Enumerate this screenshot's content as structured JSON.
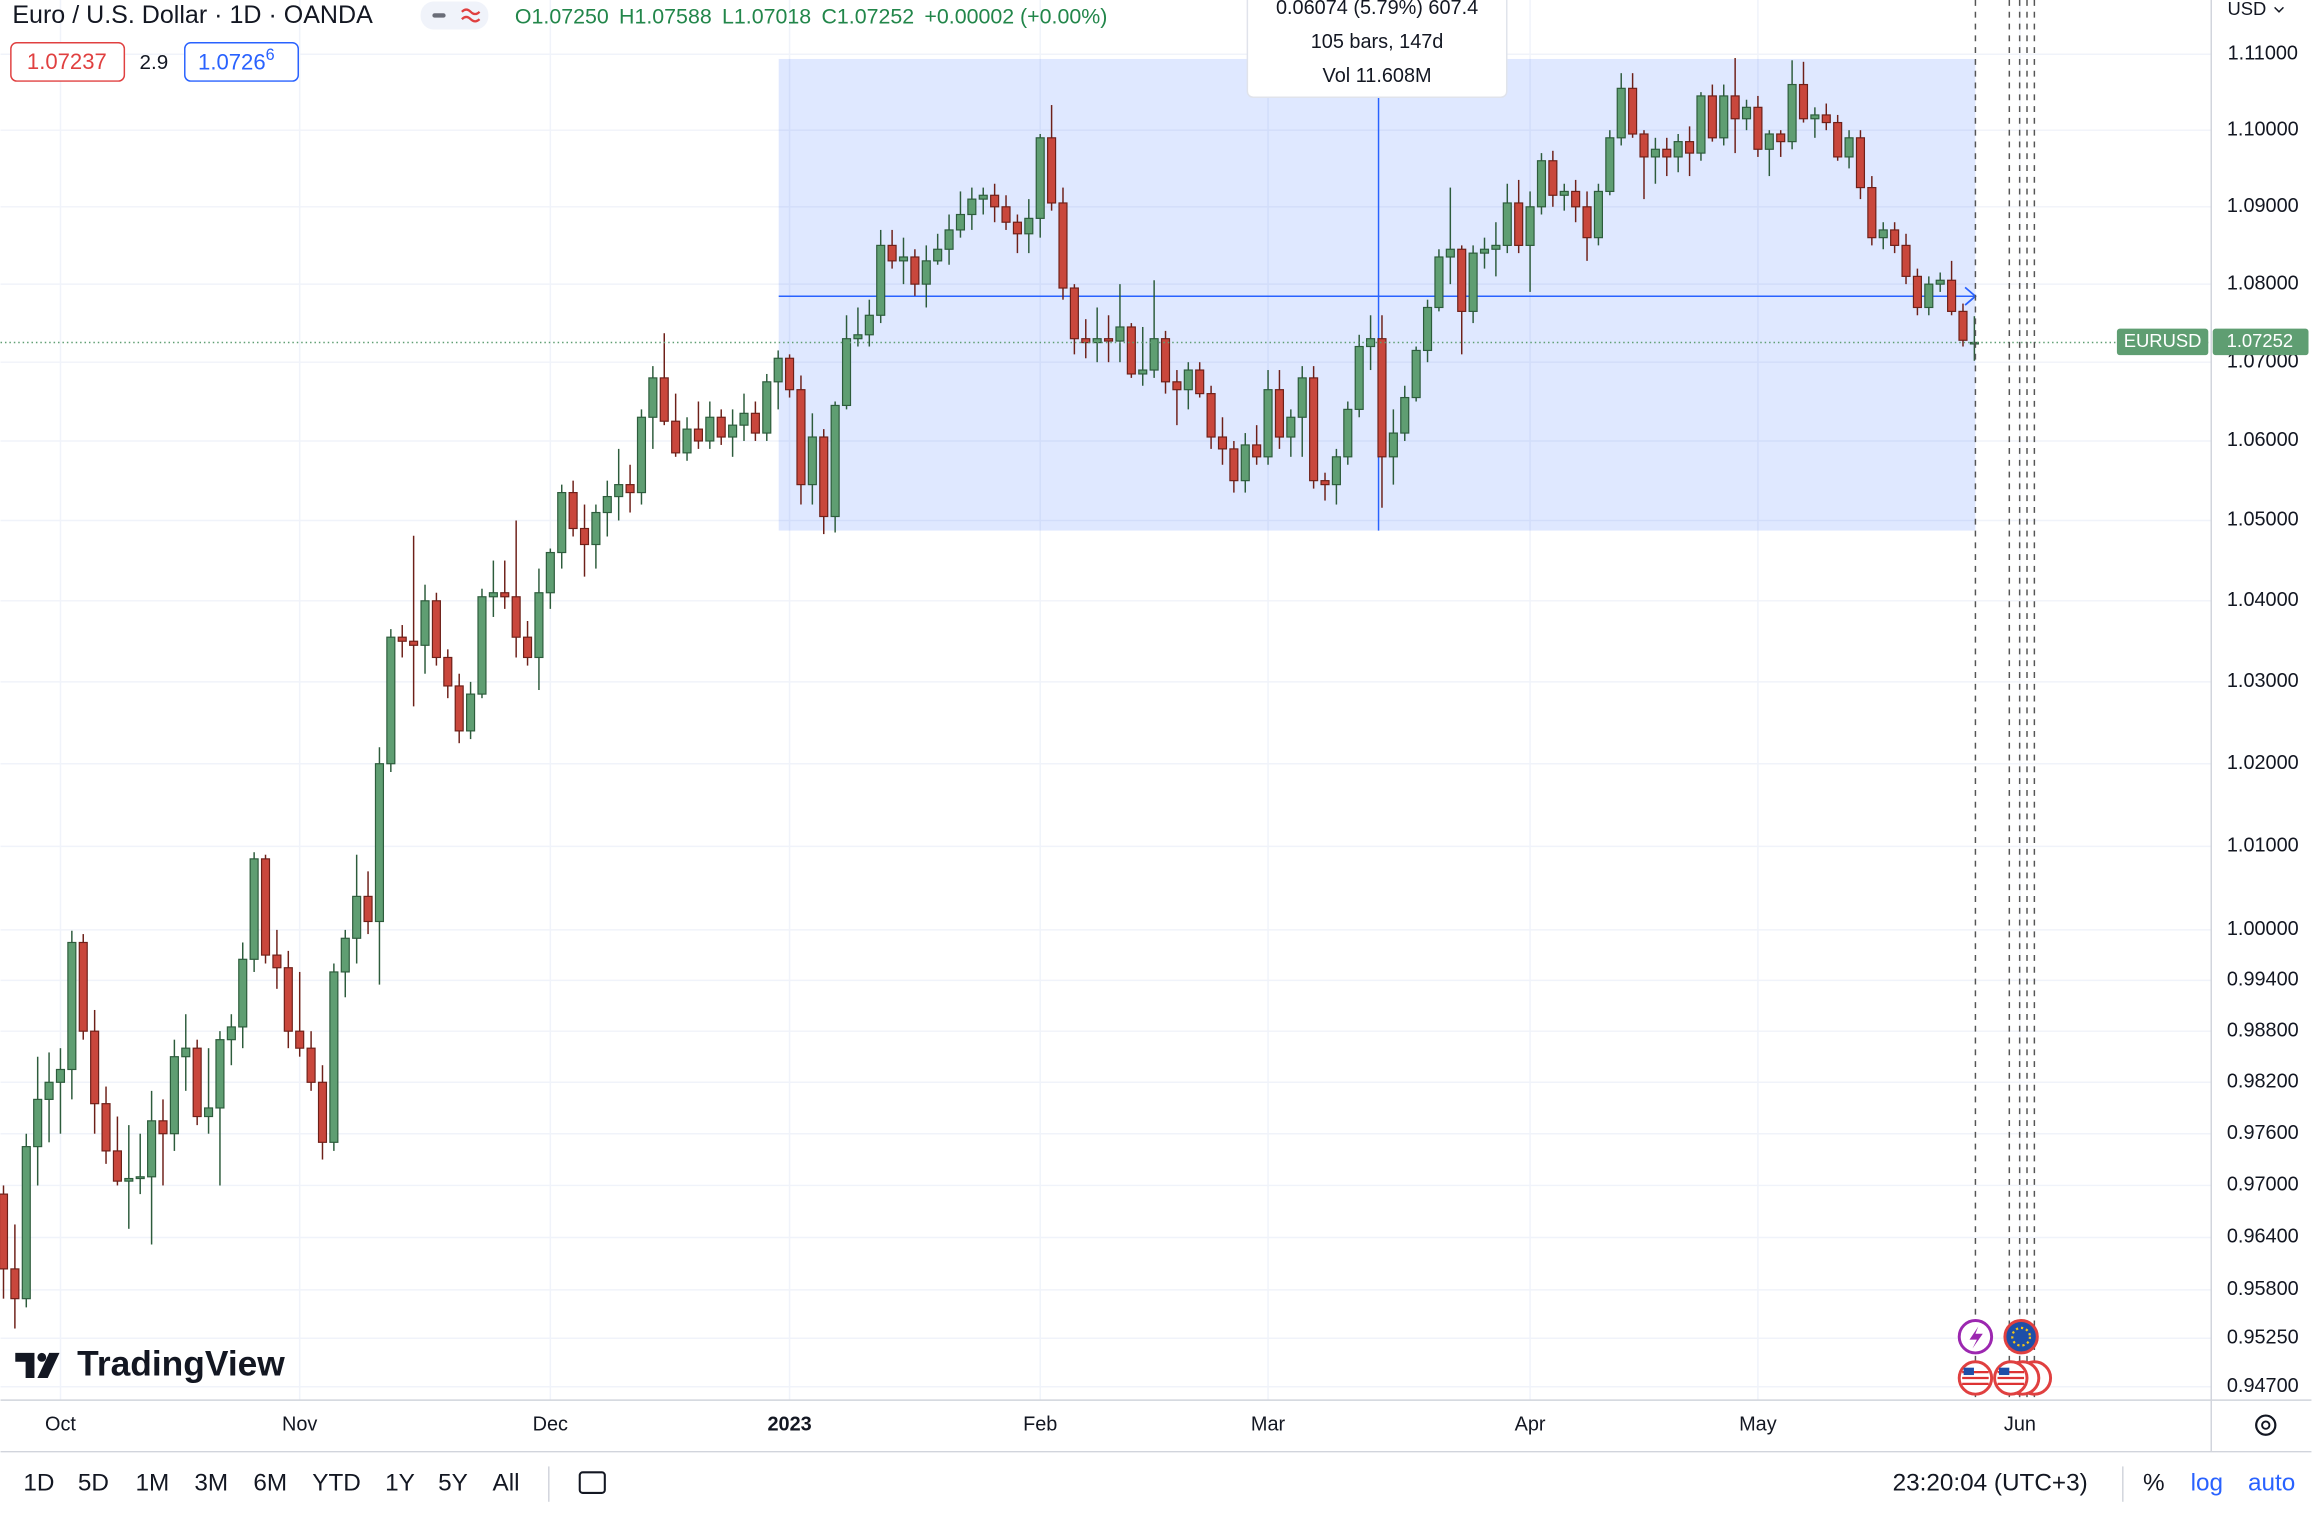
{
  "header": {
    "title": "Euro / U.S. Dollar · 1D · OANDA",
    "ohlc": [
      {
        "letter": "O",
        "value": "1.07250"
      },
      {
        "letter": "H",
        "value": "1.07588"
      },
      {
        "letter": "L",
        "value": "1.07018"
      },
      {
        "letter": "C",
        "value": "1.07252"
      }
    ],
    "change": "+0.00002 (+0.00%)",
    "bid": "1.07237",
    "spread": "2.9",
    "ask": "1.0726",
    "ask_fraction": "6",
    "currency": "USD"
  },
  "measure_tooltip": [
    "0.06074 (5.79%) 607.4",
    "105 bars, 147d",
    "Vol 11.608M"
  ],
  "price_tag": {
    "symbol": "EURUSD",
    "price": "1.07252"
  },
  "logo": "TradingView",
  "toolbar": {
    "ranges": [
      "1D",
      "5D",
      "1M",
      "3M",
      "6M",
      "YTD",
      "1Y",
      "5Y",
      "All"
    ],
    "time": "23:20:04 (UTC+3)",
    "options": [
      "%",
      "log",
      "auto"
    ]
  },
  "chart_data": {
    "type": "candlestick",
    "log_scale": true,
    "grid": true,
    "up_color": "#5f9e72",
    "down_color": "#c9473c",
    "ylim": [
      0.9455,
      1.1172
    ],
    "yticks": [
      {
        "value": 1.11,
        "label": "1.11000"
      },
      {
        "value": 1.1,
        "label": "1.10000"
      },
      {
        "value": 1.09,
        "label": "1.09000"
      },
      {
        "value": 1.08,
        "label": "1.08000"
      },
      {
        "value": 1.07,
        "label": "1.07000"
      },
      {
        "value": 1.06,
        "label": "1.06000"
      },
      {
        "value": 1.05,
        "label": "1.05000"
      },
      {
        "value": 1.04,
        "label": "1.04000"
      },
      {
        "value": 1.03,
        "label": "1.03000"
      },
      {
        "value": 1.02,
        "label": "1.02000"
      },
      {
        "value": 1.01,
        "label": "1.01000"
      },
      {
        "value": 1.0,
        "label": "1.00000"
      },
      {
        "value": 0.994,
        "label": "0.99400"
      },
      {
        "value": 0.988,
        "label": "0.98800"
      },
      {
        "value": 0.982,
        "label": "0.98200"
      },
      {
        "value": 0.976,
        "label": "0.97600"
      },
      {
        "value": 0.97,
        "label": "0.97000"
      },
      {
        "value": 0.964,
        "label": "0.96400"
      },
      {
        "value": 0.958,
        "label": "0.95800"
      },
      {
        "value": 0.9525,
        "label": "0.95250"
      },
      {
        "value": 0.947,
        "label": "0.94700"
      }
    ],
    "categories": [
      null,
      null,
      null,
      null,
      null,
      "Oct",
      null,
      null,
      null,
      null,
      null,
      null,
      null,
      null,
      null,
      null,
      null,
      null,
      null,
      null,
      null,
      null,
      null,
      null,
      null,
      null,
      "Nov",
      null,
      null,
      null,
      null,
      null,
      null,
      null,
      null,
      null,
      null,
      null,
      null,
      null,
      null,
      null,
      null,
      null,
      null,
      null,
      null,
      null,
      "Dec",
      null,
      null,
      null,
      null,
      null,
      null,
      null,
      null,
      null,
      null,
      null,
      null,
      null,
      null,
      null,
      null,
      null,
      null,
      null,
      null,
      "2023",
      null,
      null,
      null,
      null,
      null,
      null,
      null,
      null,
      null,
      null,
      null,
      null,
      null,
      null,
      null,
      null,
      null,
      null,
      null,
      null,
      null,
      "Feb",
      null,
      null,
      null,
      null,
      null,
      null,
      null,
      null,
      null,
      null,
      null,
      null,
      null,
      null,
      null,
      null,
      null,
      null,
      null,
      "Mar",
      null,
      null,
      null,
      null,
      null,
      null,
      null,
      null,
      null,
      null,
      null,
      null,
      null,
      null,
      null,
      null,
      null,
      null,
      null,
      null,
      null,
      null,
      "Apr",
      null,
      null,
      null,
      null,
      null,
      null,
      null,
      null,
      null,
      null,
      null,
      null,
      null,
      null,
      null,
      null,
      null,
      null,
      null,
      "May",
      null,
      null,
      null,
      null,
      null,
      null,
      null,
      null,
      null,
      null,
      null,
      null,
      null,
      null,
      null,
      null,
      null,
      null,
      null,
      null,
      null,
      null,
      "Jun"
    ],
    "candles": [
      [
        0.969,
        0.97,
        0.957,
        0.9604
      ],
      [
        0.9604,
        0.9655,
        0.9536,
        0.957
      ],
      [
        0.957,
        0.976,
        0.956,
        0.9745
      ],
      [
        0.9745,
        0.985,
        0.97,
        0.98
      ],
      [
        0.98,
        0.9855,
        0.975,
        0.982
      ],
      [
        0.982,
        0.986,
        0.976,
        0.9835
      ],
      [
        0.9835,
        0.9999,
        0.98,
        0.9985
      ],
      [
        0.9985,
        0.9995,
        0.987,
        0.988
      ],
      [
        0.988,
        0.9905,
        0.976,
        0.9795
      ],
      [
        0.9795,
        0.9815,
        0.9725,
        0.974
      ],
      [
        0.974,
        0.978,
        0.97,
        0.9705
      ],
      [
        0.9705,
        0.977,
        0.965,
        0.9708
      ],
      [
        0.9708,
        0.976,
        0.969,
        0.971
      ],
      [
        0.971,
        0.981,
        0.9632,
        0.9775
      ],
      [
        0.9775,
        0.98,
        0.97,
        0.976
      ],
      [
        0.976,
        0.987,
        0.974,
        0.985
      ],
      [
        0.985,
        0.99,
        0.981,
        0.986
      ],
      [
        0.986,
        0.987,
        0.977,
        0.978
      ],
      [
        0.978,
        0.986,
        0.976,
        0.979
      ],
      [
        0.979,
        0.988,
        0.97,
        0.987
      ],
      [
        0.987,
        0.99,
        0.984,
        0.9885
      ],
      [
        0.9885,
        0.9985,
        0.986,
        0.9965
      ],
      [
        0.9965,
        1.0093,
        0.995,
        1.0085
      ],
      [
        1.0085,
        1.009,
        0.996,
        0.997
      ],
      [
        0.997,
        1.0,
        0.993,
        0.9955
      ],
      [
        0.9955,
        0.9975,
        0.986,
        0.988
      ],
      [
        0.988,
        0.995,
        0.985,
        0.986
      ],
      [
        0.986,
        0.988,
        0.981,
        0.982
      ],
      [
        0.982,
        0.984,
        0.973,
        0.975
      ],
      [
        0.975,
        0.996,
        0.974,
        0.995
      ],
      [
        0.995,
        1.0,
        0.992,
        0.999
      ],
      [
        0.999,
        1.009,
        0.996,
        1.004
      ],
      [
        1.004,
        1.007,
        0.9995,
        1.001
      ],
      [
        1.001,
        1.022,
        0.9935,
        1.02
      ],
      [
        1.02,
        1.0365,
        1.019,
        1.0355
      ],
      [
        1.0355,
        1.037,
        1.033,
        1.035
      ],
      [
        1.035,
        1.0481,
        1.027,
        1.0345
      ],
      [
        1.0345,
        1.042,
        1.031,
        1.04
      ],
      [
        1.04,
        1.041,
        1.032,
        1.033
      ],
      [
        1.033,
        1.034,
        1.028,
        1.0295
      ],
      [
        1.0295,
        1.031,
        1.0225,
        1.024
      ],
      [
        1.024,
        1.03,
        1.023,
        1.0285
      ],
      [
        1.0285,
        1.0415,
        1.028,
        1.0405
      ],
      [
        1.0405,
        1.045,
        1.038,
        1.041
      ],
      [
        1.041,
        1.045,
        1.039,
        1.0405
      ],
      [
        1.0405,
        1.05,
        1.033,
        1.0355
      ],
      [
        1.0355,
        1.0375,
        1.032,
        1.033
      ],
      [
        1.033,
        1.044,
        1.029,
        1.041
      ],
      [
        1.041,
        1.0465,
        1.039,
        1.046
      ],
      [
        1.046,
        1.0545,
        1.044,
        1.0535
      ],
      [
        1.0535,
        1.055,
        1.048,
        1.049
      ],
      [
        1.049,
        1.052,
        1.043,
        1.047
      ],
      [
        1.047,
        1.052,
        1.044,
        1.051
      ],
      [
        1.051,
        1.055,
        1.048,
        1.053
      ],
      [
        1.053,
        1.059,
        1.05,
        1.0545
      ],
      [
        1.0545,
        1.057,
        1.051,
        1.0535
      ],
      [
        1.0535,
        1.064,
        1.052,
        1.063
      ],
      [
        1.063,
        1.0695,
        1.059,
        1.068
      ],
      [
        1.068,
        1.0737,
        1.062,
        1.0625
      ],
      [
        1.0625,
        1.066,
        1.058,
        1.0585
      ],
      [
        1.0585,
        1.063,
        1.0575,
        1.0615
      ],
      [
        1.0615,
        1.065,
        1.059,
        1.06
      ],
      [
        1.06,
        1.065,
        1.059,
        1.063
      ],
      [
        1.063,
        1.064,
        1.0595,
        1.0605
      ],
      [
        1.0605,
        1.064,
        1.058,
        1.062
      ],
      [
        1.062,
        1.066,
        1.06,
        1.0635
      ],
      [
        1.0635,
        1.065,
        1.06,
        1.061
      ],
      [
        1.061,
        1.0685,
        1.06,
        1.0675
      ],
      [
        1.0675,
        1.0715,
        1.064,
        1.0705
      ],
      [
        1.0705,
        1.071,
        1.0655,
        1.0665
      ],
      [
        1.0665,
        1.0683,
        1.052,
        1.0545
      ],
      [
        1.0545,
        1.0635,
        1.052,
        1.0605
      ],
      [
        1.0605,
        1.0615,
        1.0483,
        1.0505
      ],
      [
        1.0505,
        1.065,
        1.0485,
        1.0645
      ],
      [
        1.0645,
        1.076,
        1.064,
        1.073
      ],
      [
        1.073,
        1.077,
        1.072,
        1.0735
      ],
      [
        1.0735,
        1.078,
        1.072,
        1.076
      ],
      [
        1.076,
        1.087,
        1.075,
        1.085
      ],
      [
        1.085,
        1.087,
        1.082,
        1.083
      ],
      [
        1.083,
        1.086,
        1.08,
        1.0835
      ],
      [
        1.0835,
        1.0845,
        1.0785,
        1.08
      ],
      [
        1.08,
        1.085,
        1.077,
        1.083
      ],
      [
        1.083,
        1.0865,
        1.0825,
        1.0845
      ],
      [
        1.0845,
        1.089,
        1.0825,
        1.087
      ],
      [
        1.087,
        1.092,
        1.086,
        1.089
      ],
      [
        1.089,
        1.0925,
        1.087,
        1.091
      ],
      [
        1.091,
        1.0925,
        1.089,
        1.0915
      ],
      [
        1.0915,
        1.093,
        1.088,
        1.09
      ],
      [
        1.09,
        1.0915,
        1.087,
        1.088
      ],
      [
        1.088,
        1.089,
        1.084,
        1.0865
      ],
      [
        1.0865,
        1.091,
        1.084,
        1.0885
      ],
      [
        1.0885,
        1.0995,
        1.086,
        1.099
      ],
      [
        1.099,
        1.1033,
        1.0895,
        1.0905
      ],
      [
        1.0905,
        1.0925,
        1.078,
        1.0795
      ],
      [
        1.0795,
        1.08,
        1.071,
        1.073
      ],
      [
        1.073,
        1.0755,
        1.0705,
        1.0725
      ],
      [
        1.0725,
        1.077,
        1.07,
        1.073
      ],
      [
        1.073,
        1.076,
        1.07,
        1.0727
      ],
      [
        1.0727,
        1.08,
        1.07,
        1.0745
      ],
      [
        1.0745,
        1.075,
        1.068,
        1.0685
      ],
      [
        1.0685,
        1.0745,
        1.067,
        1.069
      ],
      [
        1.069,
        1.0805,
        1.068,
        1.073
      ],
      [
        1.073,
        1.074,
        1.066,
        1.0675
      ],
      [
        1.0675,
        1.069,
        1.062,
        1.0665
      ],
      [
        1.0665,
        1.07,
        1.064,
        1.069
      ],
      [
        1.069,
        1.07,
        1.0655,
        1.066
      ],
      [
        1.066,
        1.067,
        1.059,
        1.0605
      ],
      [
        1.0605,
        1.063,
        1.057,
        1.059
      ],
      [
        1.059,
        1.06,
        1.0535,
        1.055
      ],
      [
        1.055,
        1.061,
        1.0535,
        1.0595
      ],
      [
        1.0595,
        1.062,
        1.057,
        1.058
      ],
      [
        1.058,
        1.069,
        1.057,
        1.0665
      ],
      [
        1.0665,
        1.069,
        1.059,
        1.0605
      ],
      [
        1.0605,
        1.064,
        1.058,
        1.063
      ],
      [
        1.063,
        1.0695,
        1.058,
        1.068
      ],
      [
        1.068,
        1.0695,
        1.054,
        1.055
      ],
      [
        1.055,
        1.056,
        1.0525,
        1.0545
      ],
      [
        1.0545,
        1.059,
        1.052,
        1.058
      ],
      [
        1.058,
        1.065,
        1.057,
        1.064
      ],
      [
        1.064,
        1.0735,
        1.063,
        1.072
      ],
      [
        1.072,
        1.076,
        1.069,
        1.073
      ],
      [
        1.073,
        1.076,
        1.0516,
        1.058
      ],
      [
        1.058,
        1.064,
        1.0545,
        1.061
      ],
      [
        1.061,
        1.067,
        1.06,
        1.0655
      ],
      [
        1.0655,
        1.072,
        1.065,
        1.0715
      ],
      [
        1.0715,
        1.078,
        1.07,
        1.077
      ],
      [
        1.077,
        1.0845,
        1.0765,
        1.0835
      ],
      [
        1.0835,
        1.0925,
        1.08,
        1.0845
      ],
      [
        1.0845,
        1.085,
        1.071,
        1.0765
      ],
      [
        1.0765,
        1.085,
        1.075,
        1.084
      ],
      [
        1.084,
        1.086,
        1.082,
        1.0845
      ],
      [
        1.0845,
        1.088,
        1.081,
        1.085
      ],
      [
        1.085,
        1.093,
        1.084,
        1.0905
      ],
      [
        1.0905,
        1.0935,
        1.084,
        1.085
      ],
      [
        1.085,
        1.092,
        1.079,
        1.09
      ],
      [
        1.09,
        1.097,
        1.089,
        1.096
      ],
      [
        1.096,
        1.0973,
        1.09,
        1.0915
      ],
      [
        1.0915,
        1.093,
        1.0895,
        1.092
      ],
      [
        1.092,
        1.0935,
        1.088,
        1.09
      ],
      [
        1.09,
        1.092,
        1.083,
        1.086
      ],
      [
        1.086,
        1.093,
        1.085,
        1.092
      ],
      [
        1.092,
        1.1,
        1.0915,
        1.099
      ],
      [
        1.099,
        1.1075,
        1.098,
        1.1055
      ],
      [
        1.1055,
        1.1075,
        1.099,
        1.0995
      ],
      [
        1.0995,
        1.1,
        1.091,
        1.0965
      ],
      [
        1.0965,
        1.099,
        1.093,
        1.0975
      ],
      [
        1.0975,
        1.099,
        1.094,
        1.0965
      ],
      [
        1.0965,
        1.0995,
        1.0945,
        1.0985
      ],
      [
        1.0985,
        1.1005,
        1.094,
        1.097
      ],
      [
        1.097,
        1.105,
        1.096,
        1.1045
      ],
      [
        1.1045,
        1.106,
        1.0985,
        1.099
      ],
      [
        1.099,
        1.106,
        1.098,
        1.1045
      ],
      [
        1.1045,
        1.1095,
        1.097,
        1.1015
      ],
      [
        1.1015,
        1.104,
        1.1,
        1.103
      ],
      [
        1.103,
        1.1045,
        1.0965,
        1.0975
      ],
      [
        1.0975,
        1.1,
        1.094,
        1.0995
      ],
      [
        1.0995,
        1.1,
        1.0965,
        1.0985
      ],
      [
        1.0985,
        1.1092,
        1.0975,
        1.106
      ],
      [
        1.106,
        1.109,
        1.101,
        1.1015
      ],
      [
        1.1015,
        1.103,
        1.099,
        1.102
      ],
      [
        1.102,
        1.1035,
        1.1,
        1.101
      ],
      [
        1.101,
        1.102,
        1.096,
        1.0965
      ],
      [
        1.0965,
        1.1,
        1.095,
        1.099
      ],
      [
        1.099,
        1.1,
        1.091,
        1.0925
      ],
      [
        1.0925,
        1.094,
        1.085,
        1.086
      ],
      [
        1.086,
        1.088,
        1.0845,
        1.087
      ],
      [
        1.087,
        1.088,
        1.084,
        1.085
      ],
      [
        1.085,
        1.0865,
        1.08,
        1.081
      ],
      [
        1.081,
        1.082,
        1.076,
        1.077
      ],
      [
        1.077,
        1.081,
        1.076,
        1.08
      ],
      [
        1.08,
        1.0815,
        1.079,
        1.0805
      ],
      [
        1.0805,
        1.083,
        1.076,
        1.0765
      ],
      [
        1.0765,
        1.0775,
        1.072,
        1.0728
      ],
      [
        1.0725,
        1.07588,
        1.07018,
        1.07252
      ],
      null,
      null,
      null,
      null
    ]
  }
}
